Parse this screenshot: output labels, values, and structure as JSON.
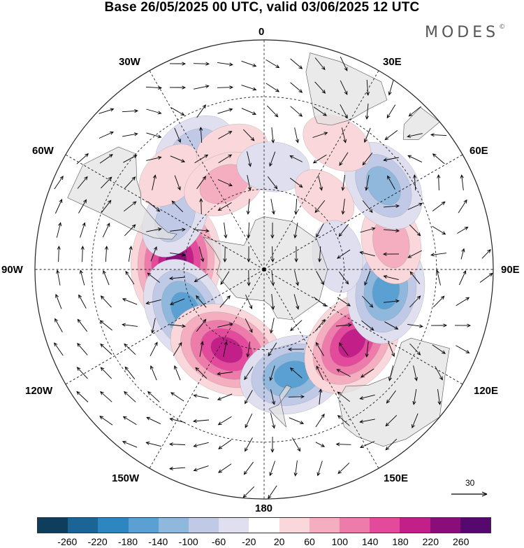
{
  "title": "Base 26/05/2025 00 UTC, valid 03/06/2025 12 UTC",
  "brand": "MODES",
  "brand_mark": "©",
  "projection": "south-polar-stereographic",
  "longitude_labels": {
    "top": "0",
    "bottom": "180",
    "left": "90W",
    "right": "90E",
    "nw1": "30W",
    "nw2": "60W",
    "ne1": "30E",
    "ne2": "60E",
    "sw1": "120W",
    "sw2": "150W",
    "se1": "120E",
    "se2": "150E"
  },
  "reference_vector": {
    "value": "30",
    "icon": "arrow-right-icon"
  },
  "colorbar": {
    "ticks": [
      "-260",
      "-220",
      "-180",
      "-140",
      "-100",
      "-60",
      "-20",
      "20",
      "60",
      "100",
      "140",
      "180",
      "220",
      "260"
    ],
    "colors": [
      "#0f3d5c",
      "#1a6496",
      "#2e86c1",
      "#5aa0d2",
      "#90b7dc",
      "#c0c9e6",
      "#e0dff0",
      "#ffffff",
      "#fad7da",
      "#f5adc0",
      "#ee7cab",
      "#e34a9b",
      "#c21f88",
      "#8a0e7a",
      "#55096e"
    ]
  },
  "colors": {
    "land": "#e2e2e2",
    "grid": "#222222",
    "vectors": "#000000"
  },
  "anomaly_centers_description": [
    {
      "lon": -85,
      "lat": -57,
      "value": 240
    },
    {
      "lon": -117,
      "lat": -57,
      "value": -180
    },
    {
      "lon": -155,
      "lat": -57,
      "value": 220
    },
    {
      "lon": 165,
      "lat": -50,
      "value": -180
    },
    {
      "lon": 130,
      "lat": -48,
      "value": 200
    },
    {
      "lon": 100,
      "lat": -45,
      "value": -180
    },
    {
      "lon": 78,
      "lat": -43,
      "value": 100
    },
    {
      "lon": 55,
      "lat": -38,
      "value": -140
    },
    {
      "lon": 30,
      "lat": -38,
      "value": 60
    },
    {
      "lon": -60,
      "lat": -52,
      "value": -100
    },
    {
      "lon": -30,
      "lat": -40,
      "value": -100
    },
    {
      "lon": -45,
      "lat": -42,
      "value": 60
    },
    {
      "lon": -15,
      "lat": -45,
      "value": 60
    },
    {
      "lon": -25,
      "lat": -55,
      "value": 100
    },
    {
      "lon": 5,
      "lat": -52,
      "value": -60
    },
    {
      "lon": 40,
      "lat": -55,
      "value": 40
    },
    {
      "lon": 80,
      "lat": -62,
      "value": -60
    }
  ]
}
